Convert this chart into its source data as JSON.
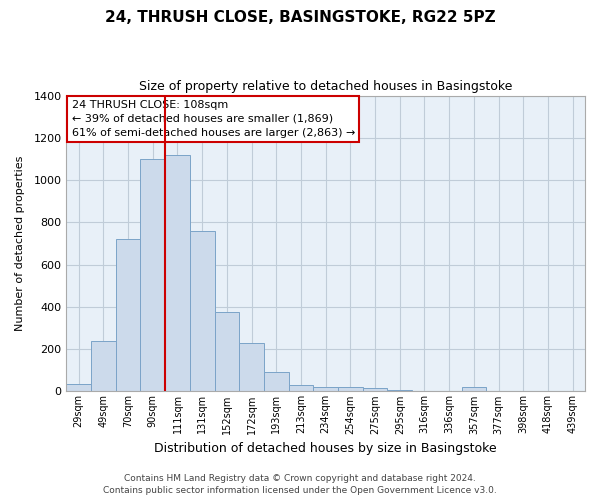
{
  "title": "24, THRUSH CLOSE, BASINGSTOKE, RG22 5PZ",
  "subtitle": "Size of property relative to detached houses in Basingstoke",
  "xlabel": "Distribution of detached houses by size in Basingstoke",
  "ylabel": "Number of detached properties",
  "bar_labels": [
    "29sqm",
    "49sqm",
    "70sqm",
    "90sqm",
    "111sqm",
    "131sqm",
    "152sqm",
    "172sqm",
    "193sqm",
    "213sqm",
    "234sqm",
    "254sqm",
    "275sqm",
    "295sqm",
    "316sqm",
    "336sqm",
    "357sqm",
    "377sqm",
    "398sqm",
    "418sqm",
    "439sqm"
  ],
  "bar_values": [
    35,
    240,
    720,
    1100,
    1120,
    760,
    375,
    230,
    90,
    30,
    20,
    20,
    15,
    5,
    2,
    2,
    20,
    0,
    0,
    0,
    0
  ],
  "bar_color": "#ccdaeb",
  "bar_edge_color": "#7ba3c8",
  "vline_color": "#cc0000",
  "ylim": [
    0,
    1400
  ],
  "yticks": [
    0,
    200,
    400,
    600,
    800,
    1000,
    1200,
    1400
  ],
  "annotation_title": "24 THRUSH CLOSE: 108sqm",
  "annotation_line1": "← 39% of detached houses are smaller (1,869)",
  "annotation_line2": "61% of semi-detached houses are larger (2,863) →",
  "annotation_box_color": "#ffffff",
  "annotation_box_edge": "#cc0000",
  "footer_line1": "Contains HM Land Registry data © Crown copyright and database right 2024.",
  "footer_line2": "Contains public sector information licensed under the Open Government Licence v3.0.",
  "background_color": "#ffffff",
  "plot_bg_color": "#e8f0f8",
  "grid_color": "#c0ccd8"
}
